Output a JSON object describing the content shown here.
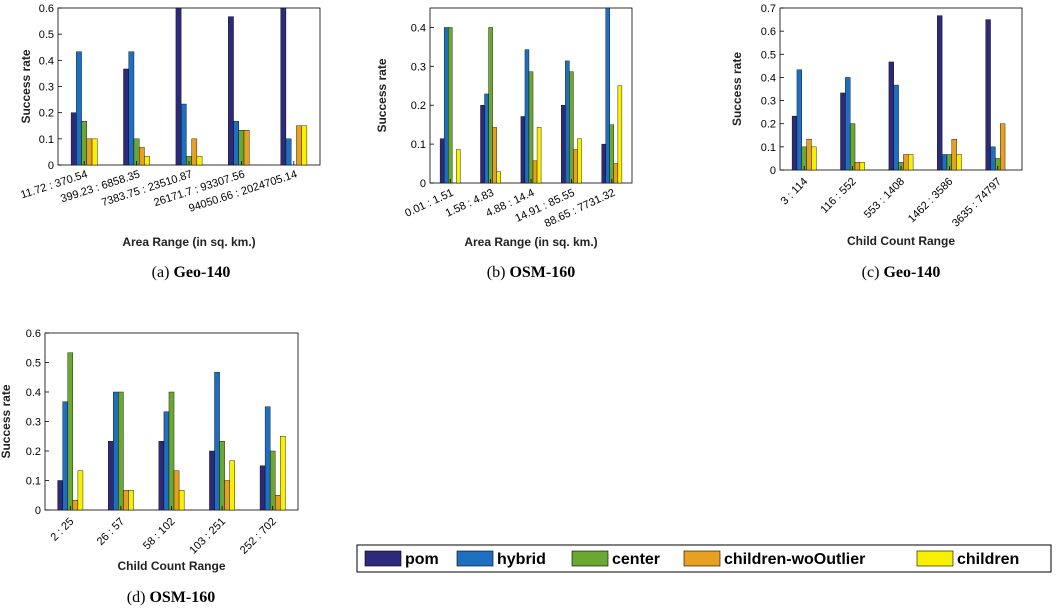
{
  "legend": {
    "entries": [
      {
        "label": "pom",
        "color": "#2e2a7a"
      },
      {
        "label": "hybrid",
        "color": "#1f6fc0"
      },
      {
        "label": "center",
        "color": "#6aa832"
      },
      {
        "label": "children-woOutlier",
        "color": "#e8a020"
      },
      {
        "label": "children",
        "color": "#f7f000"
      }
    ]
  },
  "chart_data": [
    {
      "type": "bar",
      "caption_prefix": "(a)",
      "caption_name": "Geo-140",
      "xlabel": "Area Range (in sq. km.)",
      "ylabel": "Success rate",
      "ylim": [
        0,
        0.6
      ],
      "yticks": [
        "0",
        "0.1",
        "0.2",
        "0.3",
        "0.4",
        "0.5",
        "0.6"
      ],
      "categories": [
        "11.72 : 370.54",
        "399.23 : 6858.35",
        "7383.75 : 23510.87",
        "26171.7 : 93307.56",
        "94050.66 : 2024705.14"
      ],
      "series": [
        {
          "name": "pom",
          "values": [
            0.2,
            0.367,
            0.6,
            0.567,
            0.6
          ]
        },
        {
          "name": "hybrid",
          "values": [
            0.433,
            0.433,
            0.233,
            0.167,
            0.1
          ]
        },
        {
          "name": "center",
          "values": [
            0.167,
            0.1,
            0.033,
            0.133,
            0.0
          ]
        },
        {
          "name": "children-woOutlier",
          "values": [
            0.1,
            0.067,
            0.1,
            0.133,
            0.15
          ]
        },
        {
          "name": "children",
          "values": [
            0.1,
            0.033,
            0.033,
            0.0,
            0.15
          ]
        }
      ]
    },
    {
      "type": "bar",
      "caption_prefix": "(b)",
      "caption_name": "OSM-160",
      "xlabel": "Area Range (in sq. km.)",
      "ylabel": "Success rate",
      "ylim": [
        0,
        0.45
      ],
      "yticks": [
        "0",
        "0.1",
        "0.2",
        "0.3",
        "0.4"
      ],
      "categories": [
        "0.01 : 1.51",
        "1.58 : 4.83",
        "4.88 : 14.4",
        "14.91 : 85.55",
        "88.65 : 7731.32"
      ],
      "series": [
        {
          "name": "pom",
          "values": [
            0.114,
            0.2,
            0.171,
            0.2,
            0.1
          ]
        },
        {
          "name": "hybrid",
          "values": [
            0.4,
            0.229,
            0.343,
            0.314,
            0.45
          ]
        },
        {
          "name": "center",
          "values": [
            0.4,
            0.4,
            0.286,
            0.286,
            0.15
          ]
        },
        {
          "name": "children-woOutlier",
          "values": [
            0.0,
            0.143,
            0.057,
            0.086,
            0.05
          ]
        },
        {
          "name": "children",
          "values": [
            0.086,
            0.029,
            0.143,
            0.114,
            0.25
          ]
        }
      ]
    },
    {
      "type": "bar",
      "caption_prefix": "(c)",
      "caption_name": "Geo-140",
      "xlabel": "Child Count Range",
      "ylabel": "Success rate",
      "ylim": [
        0,
        0.7
      ],
      "yticks": [
        "0",
        "0.1",
        "0.2",
        "0.3",
        "0.4",
        "0.5",
        "0.6",
        "0.7"
      ],
      "categories": [
        "3 : 114",
        "116 : 552",
        "553 : 1408",
        "1462 : 3586",
        "3635 : 74797"
      ],
      "series": [
        {
          "name": "pom",
          "values": [
            0.233,
            0.333,
            0.467,
            0.667,
            0.65
          ]
        },
        {
          "name": "hybrid",
          "values": [
            0.433,
            0.4,
            0.367,
            0.067,
            0.1
          ]
        },
        {
          "name": "center",
          "values": [
            0.1,
            0.2,
            0.033,
            0.067,
            0.05
          ]
        },
        {
          "name": "children-woOutlier",
          "values": [
            0.133,
            0.033,
            0.067,
            0.133,
            0.2
          ]
        },
        {
          "name": "children",
          "values": [
            0.1,
            0.033,
            0.067,
            0.067,
            0.0
          ]
        }
      ]
    },
    {
      "type": "bar",
      "caption_prefix": "(d)",
      "caption_name": "OSM-160",
      "xlabel": "Child Count Range",
      "ylabel": "Success rate",
      "ylim": [
        0,
        0.6
      ],
      "yticks": [
        "0",
        "0.1",
        "0.2",
        "0.3",
        "0.4",
        "0.5",
        "0.6"
      ],
      "categories": [
        "2 : 25",
        "26 : 57",
        "58 : 102",
        "103 : 251",
        "252 : 702"
      ],
      "series": [
        {
          "name": "pom",
          "values": [
            0.1,
            0.233,
            0.233,
            0.2,
            0.15
          ]
        },
        {
          "name": "hybrid",
          "values": [
            0.367,
            0.4,
            0.333,
            0.467,
            0.35
          ]
        },
        {
          "name": "center",
          "values": [
            0.533,
            0.4,
            0.4,
            0.233,
            0.2
          ]
        },
        {
          "name": "children-woOutlier",
          "values": [
            0.033,
            0.067,
            0.133,
            0.1,
            0.05
          ]
        },
        {
          "name": "children",
          "values": [
            0.133,
            0.067,
            0.067,
            0.167,
            0.25
          ]
        }
      ]
    }
  ]
}
